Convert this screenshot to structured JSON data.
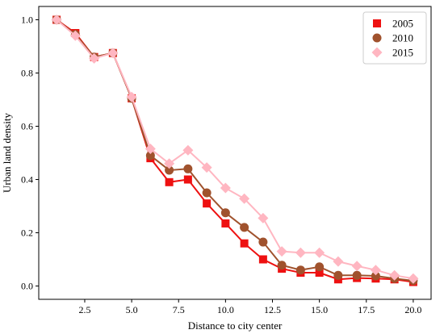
{
  "chart_data": {
    "type": "line",
    "xlabel": "Distance to city center",
    "ylabel": "Urban land density",
    "xlim": [
      0.05,
      20.95
    ],
    "ylim": [
      -0.05,
      1.05
    ],
    "xticks": [
      2.5,
      5.0,
      7.5,
      10.0,
      12.5,
      15.0,
      17.5,
      20.0
    ],
    "xtick_labels": [
      "2.5",
      "5.0",
      "7.5",
      "10.0",
      "12.5",
      "15.0",
      "17.5",
      "20.0"
    ],
    "yticks": [
      0.0,
      0.2,
      0.4,
      0.6,
      0.8,
      1.0
    ],
    "ytick_labels": [
      "0.0",
      "0.2",
      "0.4",
      "0.6",
      "0.8",
      "1.0"
    ],
    "grid": false,
    "legend_position": "top-right",
    "x": [
      1,
      2,
      3,
      4,
      5,
      6,
      7,
      8,
      9,
      10,
      11,
      12,
      13,
      14,
      15,
      16,
      17,
      18,
      19,
      20
    ],
    "series": [
      {
        "name": "2005",
        "color": "#ee1111",
        "marker": "square",
        "values": [
          1.0,
          0.95,
          0.86,
          0.875,
          0.705,
          0.48,
          0.39,
          0.4,
          0.31,
          0.235,
          0.16,
          0.1,
          0.065,
          0.05,
          0.05,
          0.025,
          0.03,
          0.028,
          0.025,
          0.015
        ]
      },
      {
        "name": "2010",
        "color": "#a0522d",
        "marker": "circle",
        "values": [
          1.0,
          0.945,
          0.86,
          0.875,
          0.705,
          0.49,
          0.435,
          0.44,
          0.35,
          0.275,
          0.22,
          0.165,
          0.078,
          0.06,
          0.072,
          0.04,
          0.04,
          0.038,
          0.028,
          0.02
        ]
      },
      {
        "name": "2015",
        "color": "#ffb6c1",
        "marker": "diamond",
        "values": [
          1.0,
          0.94,
          0.855,
          0.875,
          0.71,
          0.515,
          0.46,
          0.51,
          0.445,
          0.368,
          0.328,
          0.255,
          0.13,
          0.125,
          0.125,
          0.092,
          0.075,
          0.06,
          0.04,
          0.028
        ]
      }
    ]
  }
}
